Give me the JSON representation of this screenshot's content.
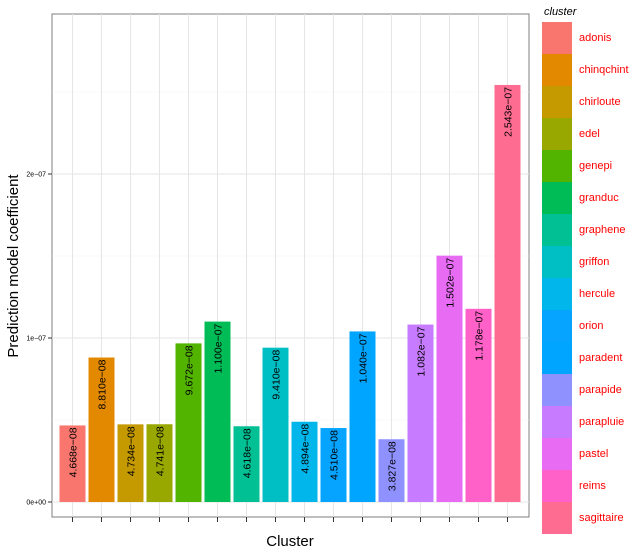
{
  "chart_data": {
    "type": "bar",
    "xlabel": "Cluster",
    "ylabel": "Prediction model coefficient",
    "ylim": [
      0,
      2.82e-07
    ],
    "yticks": [
      {
        "value": 0,
        "label": "0e+00"
      },
      {
        "value": 1e-07,
        "label": "1e−07"
      },
      {
        "value": 2e-07,
        "label": "2e−07"
      }
    ],
    "grid": true,
    "legend": {
      "title": "cluster",
      "placement": "right"
    },
    "categories": [
      "adonis",
      "chinqchint",
      "chirloute",
      "edel",
      "genepi",
      "granduc",
      "graphene",
      "griffon",
      "hercule",
      "orion",
      "paradent",
      "parapide",
      "parapluie",
      "pastel",
      "reims",
      "sagittaire"
    ],
    "values": [
      4.668e-08,
      8.81e-08,
      4.734e-08,
      4.741e-08,
      9.672e-08,
      1.1e-07,
      4.618e-08,
      9.41e-08,
      4.894e-08,
      4.51e-08,
      1.04e-07,
      3.827e-08,
      1.082e-07,
      1.502e-07,
      1.178e-07,
      2.543e-07
    ],
    "bar_labels": [
      "4.668e−08",
      "8.810e−08",
      "4.734e−08",
      "4.741e−08",
      "9.672e−08",
      "1.100e−07",
      "4.618e−08",
      "9.410e−08",
      "4.894e−08",
      "4.510e−08",
      "1.040e−07",
      "3.827e−08",
      "1.082e−07",
      "1.502e−07",
      "1.178e−07",
      "2.543e−07"
    ],
    "colors": [
      "#F8766D",
      "#E38900",
      "#C49A00",
      "#99A800",
      "#53B400",
      "#00BC56",
      "#00C094",
      "#00BFC4",
      "#00B6EB",
      "#06A4FF",
      "#00A5FF",
      "#8F91FF",
      "#C77CFF",
      "#E76BF3",
      "#FF61C9",
      "#FF6C91"
    ]
  }
}
